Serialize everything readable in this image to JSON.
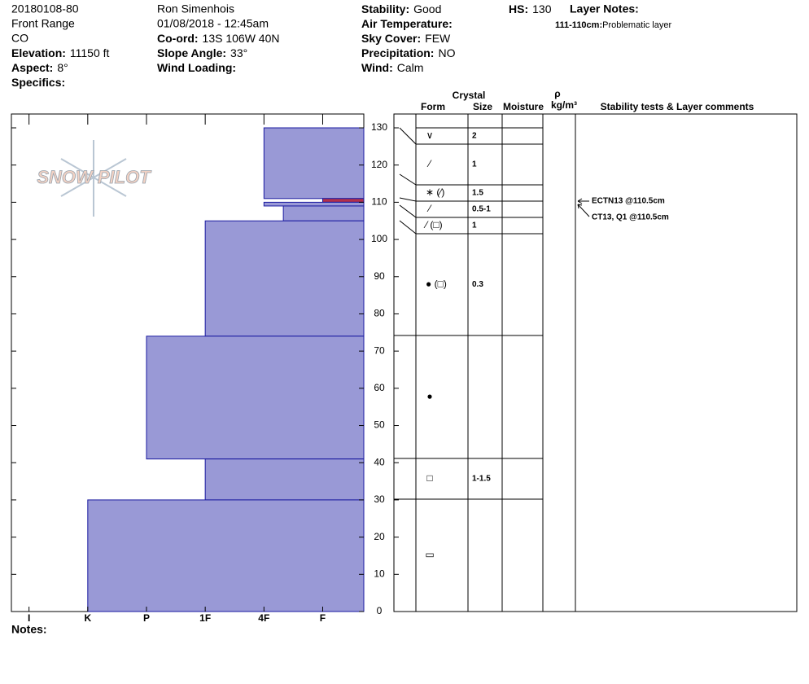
{
  "header": {
    "profile_id": "20180108-80",
    "range": "Front Range",
    "state": "CO",
    "elevation": {
      "label": "Elevation:",
      "value": "11150 ft"
    },
    "aspect": {
      "label": "Aspect:",
      "value": "8°"
    },
    "specifics": {
      "label": "Specifics:"
    },
    "observer": "Ron Simenhois",
    "datetime": "01/08/2018 - 12:45am",
    "coord": {
      "label": "Co-ord:",
      "value": "13S 106W 40N"
    },
    "slope_angle": {
      "label": "Slope Angle:",
      "value": "33°"
    },
    "wind_loading": {
      "label": "Wind Loading:"
    },
    "stability": {
      "label": "Stability:",
      "value": "Good"
    },
    "air_temperature": {
      "label": "Air Temperature:"
    },
    "sky_cover": {
      "label": "Sky Cover:",
      "value": "FEW"
    },
    "precipitation": {
      "label": "Precipitation:",
      "value": "NO"
    },
    "wind": {
      "label": "Wind:",
      "value": "Calm"
    },
    "hs": {
      "label": "HS:",
      "value": 130
    },
    "layer_notes": {
      "label": "Layer Notes:",
      "items": [
        {
          "range": "111-110cm:",
          "note": "Problematic layer"
        }
      ]
    }
  },
  "logo": "SNOW PILOT",
  "chart_data": {
    "type": "hardness-profile",
    "color": "#9999d6",
    "xlim": [
      6.3,
      0.3
    ],
    "xticks": [
      {
        "value": 6,
        "label": "I"
      },
      {
        "value": 5,
        "label": "K"
      },
      {
        "value": 4,
        "label": "P"
      },
      {
        "value": 3,
        "label": "1F"
      },
      {
        "value": 2,
        "label": "4F"
      },
      {
        "value": 1,
        "label": "F"
      }
    ],
    "ylim": [
      0,
      130
    ],
    "yticks": [
      0,
      10,
      20,
      30,
      40,
      50,
      60,
      70,
      80,
      90,
      100,
      110,
      120,
      130
    ],
    "layers": [
      {
        "top": 130,
        "bottom": 111,
        "hardness": 2
      },
      {
        "top": 111,
        "bottom": 110,
        "hardness": 1,
        "color": "#b3304a"
      },
      {
        "top": 110,
        "bottom": 109,
        "hardness": 2
      },
      {
        "top": 109,
        "bottom": 105,
        "hardness": 1.67
      },
      {
        "top": 105,
        "bottom": 74,
        "hardness": 3
      },
      {
        "top": 74,
        "bottom": 41,
        "hardness": 4
      },
      {
        "top": 41,
        "bottom": 30,
        "hardness": 3
      },
      {
        "top": 30,
        "bottom": 0,
        "hardness": 5
      }
    ]
  },
  "crystal_table": {
    "headers": {
      "crystal": "Crystal",
      "form": "Form",
      "size": "Size",
      "moisture": "Moisture",
      "rho": "ρ",
      "density_unit": "kg/m³",
      "comments": "Stability tests & Layer comments"
    },
    "rows": [
      {
        "form": "∨",
        "size": "2"
      },
      {
        "form": "⁄",
        "size": "1"
      },
      {
        "form": "∗ (⁄)",
        "size": "1.5"
      },
      {
        "form": "⁄",
        "size": "0.5-1"
      },
      {
        "form": "⁄ (□)",
        "size": "1"
      },
      {
        "form": "● (□)",
        "size": "0.3"
      },
      {
        "form": "●"
      },
      {
        "form": "□",
        "size": "1-1.5"
      },
      {
        "form": "▭"
      }
    ]
  },
  "stability_tests": [
    "ECTN13 @110.5cm",
    "CT13, Q1 @110.5cm"
  ],
  "notes": {
    "label": "Notes:"
  }
}
